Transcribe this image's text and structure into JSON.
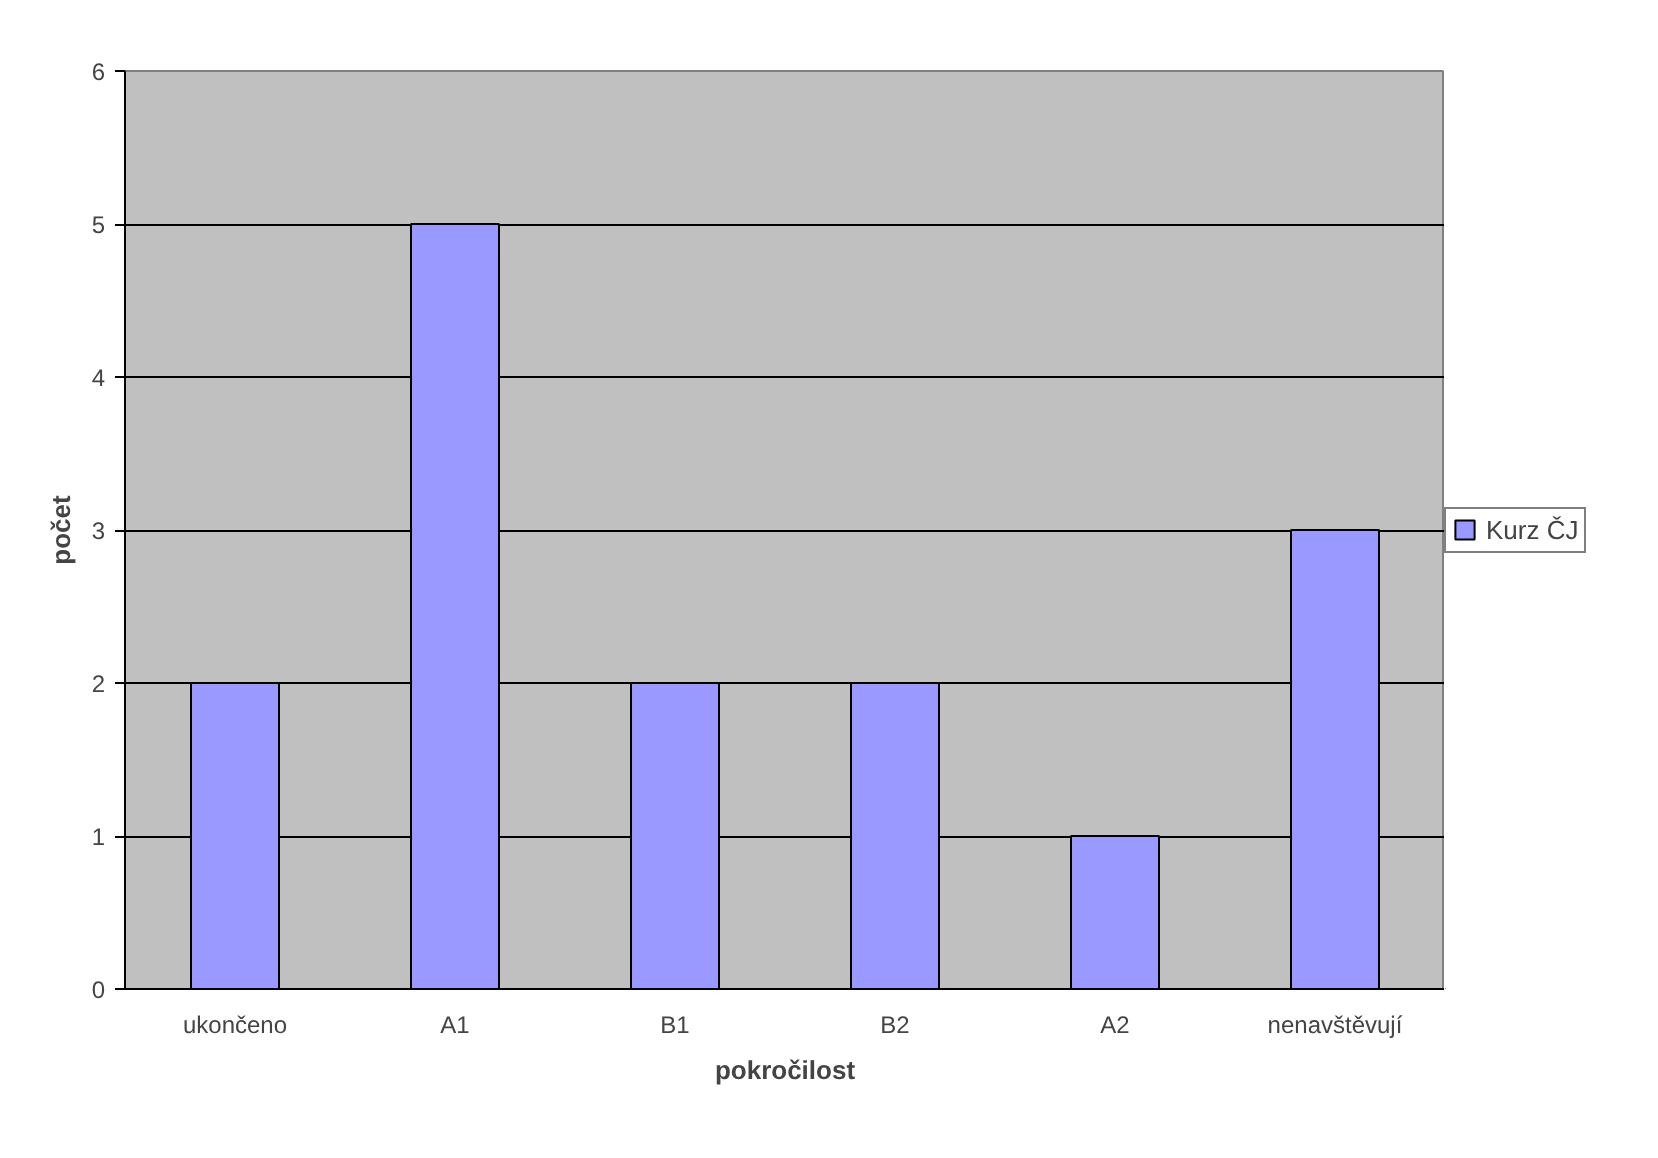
{
  "chart_data": {
    "type": "bar",
    "xlabel": "pokročilost",
    "ylabel": "počet",
    "categories": [
      "ukončeno",
      "A1",
      "B1",
      "B2",
      "A2",
      "nenavštěvují"
    ],
    "series": [
      {
        "name": "Kurz ČJ",
        "color": "#9999ff",
        "values": [
          2,
          5,
          2,
          2,
          1,
          3
        ]
      }
    ],
    "ylim": [
      0,
      6
    ],
    "yticks": [
      0,
      1,
      2,
      3,
      4,
      5,
      6
    ],
    "grid": "y",
    "legend": "right"
  }
}
